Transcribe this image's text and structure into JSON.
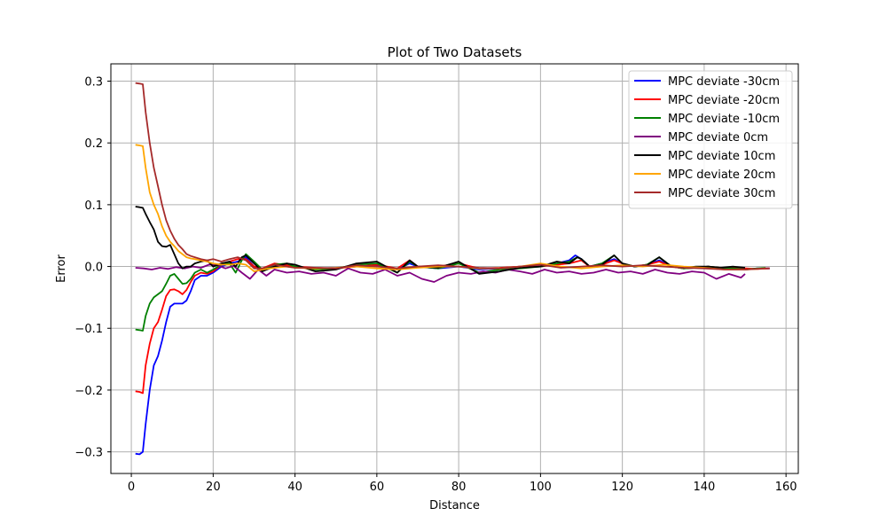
{
  "chart_data": {
    "type": "line",
    "title": "Plot of Two Datasets",
    "xlabel": "Distance",
    "ylabel": "Error",
    "xlim": [
      -5,
      163
    ],
    "ylim": [
      -0.335,
      0.328
    ],
    "xticks": [
      0,
      20,
      40,
      60,
      80,
      100,
      120,
      140,
      160
    ],
    "yticks": [
      -0.3,
      -0.2,
      -0.1,
      0.0,
      0.1,
      0.2,
      0.3
    ],
    "ytick_labels": [
      "−0.3",
      "−0.2",
      "−0.1",
      "0.0",
      "0.1",
      "0.2",
      "0.3"
    ],
    "grid": true,
    "legend_position": "top-right",
    "series": [
      {
        "name": "MPC deviate -30cm",
        "color": "#0000ff",
        "x": [
          1,
          2,
          2.8,
          3.5,
          4.5,
          5.5,
          6.5,
          7.5,
          8.5,
          9.5,
          10.5,
          11.5,
          12.5,
          13.5,
          14.5,
          15.5,
          17,
          18.5,
          20,
          22,
          24,
          26,
          28,
          30,
          32,
          35,
          38,
          40,
          45,
          50,
          55,
          60,
          65,
          68,
          70,
          75,
          80,
          85,
          90,
          95,
          100,
          104,
          107,
          108.5,
          110,
          112,
          115,
          118,
          120,
          123,
          126,
          129,
          132,
          135,
          138,
          141,
          144,
          147,
          150,
          153,
          156
        ],
        "y": [
          -0.303,
          -0.304,
          -0.3,
          -0.255,
          -0.2,
          -0.16,
          -0.145,
          -0.12,
          -0.09,
          -0.065,
          -0.06,
          -0.06,
          -0.06,
          -0.055,
          -0.04,
          -0.022,
          -0.015,
          -0.015,
          -0.01,
          0.0,
          0.005,
          0.008,
          0.015,
          0.0,
          -0.005,
          0.0,
          0.003,
          0.0,
          -0.003,
          -0.002,
          0.0,
          0.002,
          -0.005,
          0.005,
          0.0,
          -0.003,
          0.0,
          -0.005,
          -0.003,
          0.0,
          0.0,
          0.005,
          0.01,
          0.018,
          0.012,
          0.0,
          0.005,
          0.012,
          0.005,
          0.0,
          0.003,
          0.01,
          0.0,
          -0.003,
          -0.002,
          0.0,
          -0.003,
          -0.002,
          -0.005,
          -0.003,
          -0.003
        ]
      },
      {
        "name": "MPC deviate -20cm",
        "color": "#ff0000",
        "x": [
          1,
          2,
          2.8,
          3.5,
          4.5,
          5.5,
          6.5,
          7.5,
          8.5,
          9.5,
          10.5,
          11.5,
          12.5,
          13.5,
          14.5,
          15.5,
          17,
          18.5,
          20,
          22,
          24,
          26,
          28,
          30,
          32,
          35,
          38,
          40,
          45,
          50,
          55,
          60,
          65,
          68,
          70,
          75,
          80,
          85,
          90,
          95,
          100,
          104,
          107,
          110,
          112,
          115,
          118,
          120,
          123,
          126,
          129,
          132,
          135,
          138,
          141,
          144,
          147,
          150,
          153,
          156
        ],
        "y": [
          -0.202,
          -0.203,
          -0.205,
          -0.16,
          -0.125,
          -0.1,
          -0.09,
          -0.07,
          -0.048,
          -0.038,
          -0.037,
          -0.04,
          -0.045,
          -0.038,
          -0.025,
          -0.015,
          -0.01,
          -0.012,
          -0.008,
          0.003,
          0.008,
          0.012,
          0.012,
          0.0,
          -0.003,
          0.005,
          0.002,
          0.0,
          -0.002,
          -0.003,
          0.0,
          0.003,
          -0.003,
          0.01,
          0.0,
          0.0,
          0.005,
          -0.003,
          -0.002,
          0.0,
          0.0,
          0.003,
          0.005,
          0.01,
          0.0,
          0.003,
          0.01,
          0.005,
          0.0,
          0.003,
          0.008,
          0.0,
          -0.003,
          -0.002,
          0.0,
          -0.002,
          -0.002,
          -0.003,
          -0.004,
          -0.003
        ]
      },
      {
        "name": "MPC deviate -10cm",
        "color": "#008000",
        "x": [
          1,
          2,
          2.8,
          3.5,
          4.5,
          5.5,
          6.5,
          7.5,
          8.5,
          9.5,
          10.5,
          11.5,
          12.5,
          13.5,
          14.5,
          15.5,
          17,
          18.5,
          20,
          22,
          24,
          25.5,
          27,
          28,
          30,
          32,
          35,
          38,
          40,
          45,
          50,
          55,
          60,
          65,
          68,
          70,
          75,
          80,
          85,
          90,
          95,
          100,
          104,
          107,
          109,
          110,
          112,
          115,
          118,
          120,
          123,
          126,
          129,
          132,
          135,
          138,
          141,
          144,
          147,
          150,
          153,
          155
        ],
        "y": [
          -0.102,
          -0.103,
          -0.104,
          -0.08,
          -0.06,
          -0.05,
          -0.045,
          -0.04,
          -0.028,
          -0.015,
          -0.012,
          -0.02,
          -0.028,
          -0.027,
          -0.02,
          -0.01,
          -0.005,
          -0.01,
          -0.005,
          0.003,
          0.005,
          -0.01,
          0.01,
          0.02,
          0.008,
          -0.005,
          0.003,
          0.005,
          0.0,
          -0.005,
          -0.003,
          0.003,
          0.005,
          -0.01,
          0.008,
          0.0,
          -0.003,
          0.005,
          -0.01,
          -0.005,
          -0.003,
          0.0,
          0.005,
          0.008,
          0.015,
          0.012,
          0.0,
          0.005,
          0.018,
          0.005,
          0.0,
          0.003,
          0.015,
          0.0,
          -0.003,
          -0.002,
          0.0,
          -0.002,
          -0.003,
          -0.005,
          -0.003,
          -0.002
        ]
      },
      {
        "name": "MPC deviate 0cm",
        "color": "#800080",
        "x": [
          1,
          3,
          5,
          7,
          9,
          11,
          13,
          15,
          17,
          19,
          21,
          23,
          25,
          27,
          29,
          31,
          33,
          35,
          38,
          41,
          44,
          47,
          50,
          53,
          56,
          59,
          62,
          65,
          68,
          71,
          74,
          77,
          80,
          83,
          86,
          89,
          92,
          95,
          98,
          101,
          104,
          107,
          110,
          113,
          116,
          119,
          122,
          125,
          128,
          131,
          134,
          137,
          140,
          143,
          146,
          149,
          150
        ],
        "y": [
          -0.002,
          -0.003,
          -0.005,
          -0.002,
          -0.004,
          -0.001,
          -0.003,
          0.0,
          -0.002,
          0.003,
          0.002,
          -0.003,
          0.001,
          -0.01,
          -0.02,
          -0.005,
          -0.015,
          -0.005,
          -0.01,
          -0.008,
          -0.012,
          -0.01,
          -0.015,
          -0.003,
          -0.01,
          -0.012,
          -0.005,
          -0.015,
          -0.01,
          -0.02,
          -0.025,
          -0.015,
          -0.01,
          -0.012,
          -0.008,
          -0.01,
          -0.005,
          -0.008,
          -0.012,
          -0.005,
          -0.01,
          -0.008,
          -0.012,
          -0.01,
          -0.005,
          -0.01,
          -0.008,
          -0.012,
          -0.005,
          -0.01,
          -0.012,
          -0.008,
          -0.01,
          -0.02,
          -0.012,
          -0.018,
          -0.012
        ]
      },
      {
        "name": "MPC deviate 10cm",
        "color": "#000000",
        "x": [
          1,
          2,
          2.8,
          3.5,
          4.5,
          5.5,
          6.5,
          7.5,
          8.5,
          9.5,
          10.5,
          11.5,
          12.5,
          13.5,
          14.5,
          15.5,
          17,
          18.5,
          20,
          22,
          24,
          25.5,
          27,
          28,
          30,
          32,
          35,
          38,
          40,
          45,
          50,
          55,
          60,
          65,
          68,
          70,
          75,
          80,
          85,
          90,
          95,
          100,
          104,
          107,
          109,
          110,
          112,
          115,
          118,
          120,
          123,
          126,
          129,
          132,
          135,
          138,
          141,
          144,
          147,
          150
        ],
        "y": [
          0.097,
          0.096,
          0.095,
          0.085,
          0.072,
          0.06,
          0.04,
          0.033,
          0.032,
          0.035,
          0.02,
          0.005,
          -0.003,
          0.0,
          0.0,
          0.005,
          0.008,
          0.01,
          0.0,
          0.005,
          0.008,
          0.0,
          0.015,
          0.018,
          0.005,
          -0.008,
          0.0,
          0.005,
          0.003,
          -0.008,
          -0.005,
          0.005,
          0.008,
          -0.01,
          0.01,
          0.0,
          -0.002,
          0.008,
          -0.012,
          -0.008,
          -0.002,
          0.0,
          0.008,
          0.005,
          0.015,
          0.012,
          0.0,
          0.003,
          0.018,
          0.005,
          0.0,
          0.002,
          0.015,
          0.0,
          -0.002,
          0.0,
          0.0,
          -0.002,
          0.0,
          -0.002
        ]
      },
      {
        "name": "MPC deviate 20cm",
        "color": "#ffa500",
        "x": [
          1,
          2,
          2.8,
          3.5,
          4.5,
          5.5,
          6.5,
          7.5,
          8.5,
          9.5,
          10.5,
          11.5,
          12.5,
          13.5,
          14.5,
          15.5,
          17,
          18.5,
          20,
          22,
          24,
          26,
          28,
          30,
          32,
          35,
          38,
          40,
          45,
          50,
          55,
          60,
          65,
          70,
          75,
          80,
          85,
          90,
          95,
          100,
          105,
          110,
          115,
          120,
          125,
          130,
          135,
          140,
          145,
          150,
          155
        ],
        "y": [
          0.197,
          0.196,
          0.195,
          0.16,
          0.12,
          0.1,
          0.085,
          0.065,
          0.05,
          0.04,
          0.033,
          0.025,
          0.02,
          0.015,
          0.013,
          0.012,
          0.01,
          0.008,
          0.005,
          0.003,
          0.003,
          0.005,
          0.003,
          -0.008,
          -0.005,
          -0.002,
          0.0,
          -0.002,
          -0.003,
          -0.002,
          0.0,
          -0.003,
          -0.005,
          -0.002,
          0.0,
          0.0,
          -0.003,
          -0.003,
          0.0,
          0.005,
          0.0,
          -0.003,
          0.0,
          0.002,
          0.0,
          0.003,
          0.0,
          -0.002,
          -0.005,
          -0.005,
          -0.003
        ]
      },
      {
        "name": "MPC deviate 30cm",
        "color": "#a52a2a",
        "x": [
          1,
          2,
          2.8,
          3.5,
          4.5,
          5.5,
          6.5,
          7.5,
          8.5,
          9.5,
          10.5,
          11.5,
          12.5,
          13.5,
          14.5,
          15.5,
          17,
          18.5,
          20,
          22,
          24,
          26,
          28,
          30,
          32,
          35,
          38,
          40,
          45,
          50,
          55,
          60,
          65,
          70,
          75,
          80,
          85,
          90,
          95,
          100,
          105,
          110,
          115,
          120,
          125,
          130,
          135,
          140,
          145,
          150,
          155,
          156
        ],
        "y": [
          0.297,
          0.296,
          0.295,
          0.25,
          0.2,
          0.16,
          0.13,
          0.1,
          0.075,
          0.058,
          0.045,
          0.035,
          0.028,
          0.02,
          0.017,
          0.015,
          0.012,
          0.01,
          0.012,
          0.008,
          0.012,
          0.015,
          0.01,
          -0.003,
          -0.003,
          0.003,
          0.0,
          -0.002,
          -0.002,
          -0.003,
          0.002,
          0.0,
          -0.003,
          0.0,
          0.002,
          0.0,
          -0.002,
          -0.003,
          0.0,
          0.003,
          -0.002,
          0.0,
          0.002,
          0.0,
          0.002,
          0.0,
          -0.002,
          -0.003,
          -0.005,
          -0.005,
          -0.003,
          -0.003
        ]
      }
    ]
  }
}
